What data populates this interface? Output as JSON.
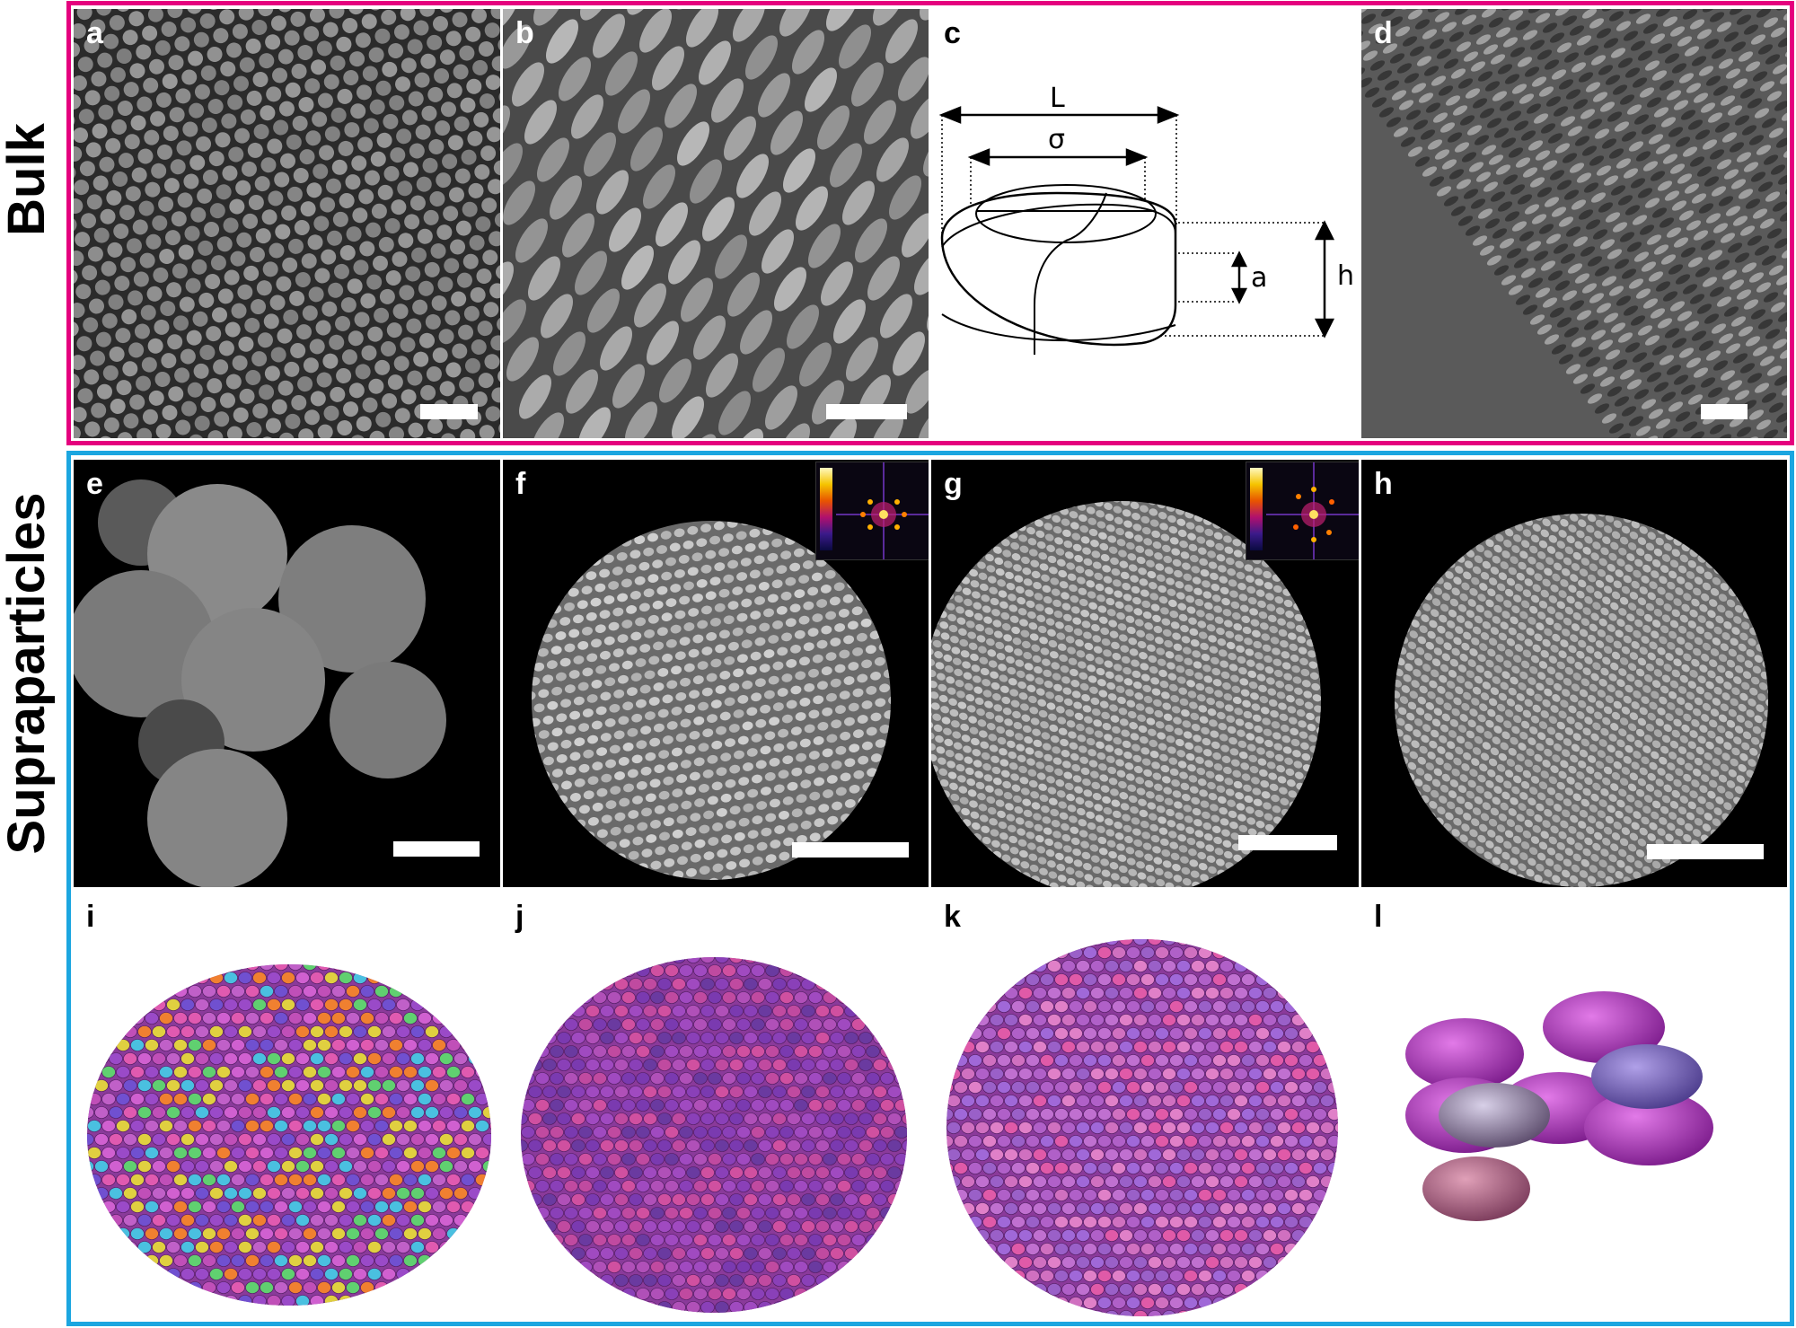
{
  "row_labels": {
    "top": "Bulk",
    "bottom": "Supraparticles"
  },
  "colors": {
    "bulk_frame": "#e5007e",
    "supra_frame": "#1ba6e0"
  },
  "panels": {
    "a": {
      "label": "a"
    },
    "b": {
      "label": "b"
    },
    "c": {
      "label": "c",
      "dims": {
        "L": "L",
        "sigma": "σ",
        "a": "a",
        "h": "h"
      }
    },
    "d": {
      "label": "d"
    },
    "e": {
      "label": "e"
    },
    "f": {
      "label": "f"
    },
    "g": {
      "label": "g"
    },
    "h": {
      "label": "h"
    },
    "i": {
      "label": "i"
    },
    "j": {
      "label": "j"
    },
    "k": {
      "label": "k"
    },
    "l": {
      "label": "l"
    }
  }
}
